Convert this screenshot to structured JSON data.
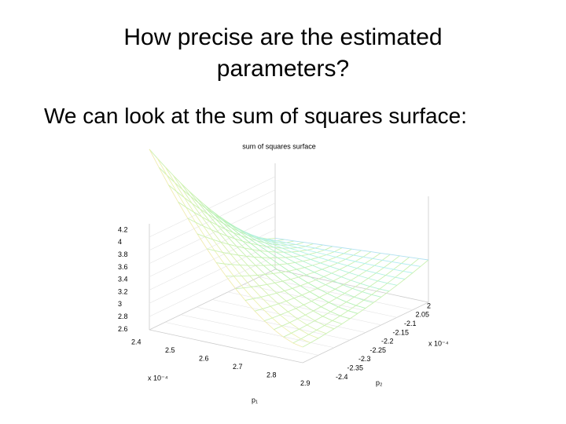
{
  "slide": {
    "title": "How precise are the estimated parameters?",
    "body": "We can look at the sum of squares surface:"
  },
  "plot": {
    "title": "sum of squares surface",
    "z_ticks": [
      "4.2",
      "4",
      "3.8",
      "3.6",
      "3.4",
      "3.2",
      "3",
      "2.8",
      "2.6"
    ],
    "p1_ticks": [
      "2.4",
      "2.5",
      "2.6",
      "2.7",
      "2.8",
      "2.9"
    ],
    "p1_exponent": "x 10⁻⁴",
    "p1_label": "p₁",
    "p2_ticks": [
      "2",
      "2.05",
      "-2.1",
      "-2.15",
      "-2.2",
      "-2.25",
      "-2.3",
      "-2.35",
      "-2.4"
    ],
    "p2_exponent": "x 10⁻⁴",
    "p2_label": "p₂"
  }
}
